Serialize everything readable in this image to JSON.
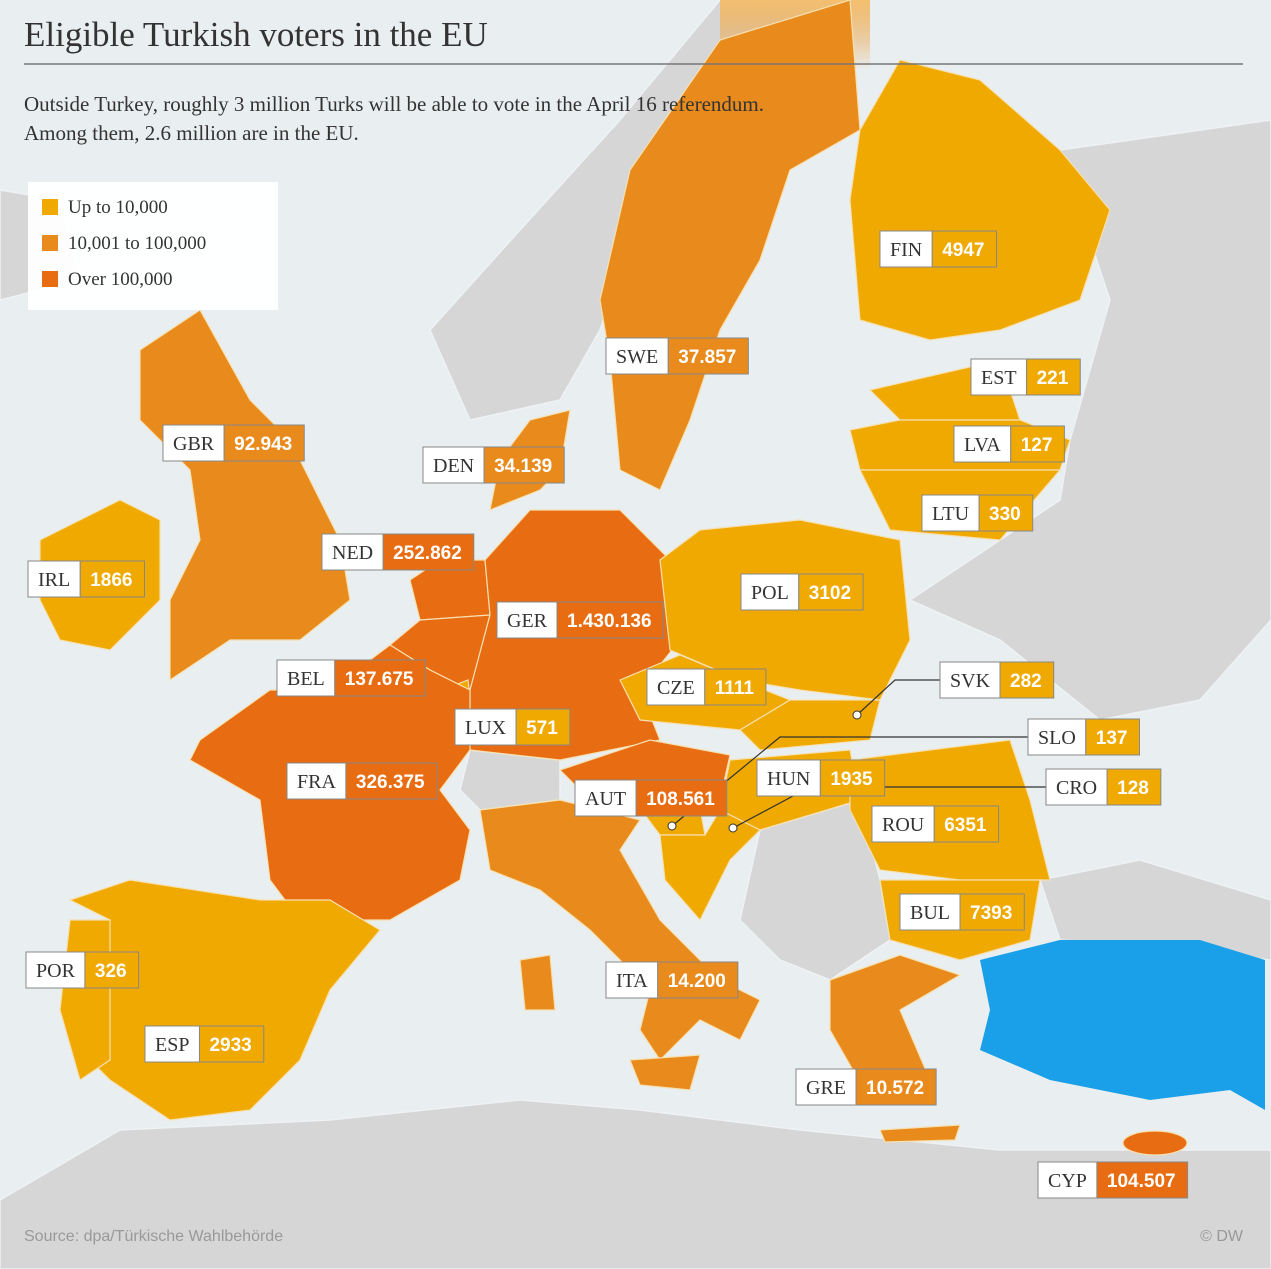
{
  "title": "Eligible Turkish voters in the EU",
  "subtitle": [
    "Outside Turkey, roughly 3 million Turks will be able to vote in the April 16 referendum.",
    "Among them, 2.6 million are in the EU."
  ],
  "legend": [
    {
      "label": "Up to 10,000",
      "color": "#efa900"
    },
    {
      "label": "10,001 to 100,000",
      "color": "#e88a1c"
    },
    {
      "label": "Over 100,000",
      "color": "#e86c12"
    }
  ],
  "countries": [
    {
      "code": "FIN",
      "value": "4947",
      "tier": 0
    },
    {
      "code": "SWE",
      "value": "37.857",
      "tier": 1
    },
    {
      "code": "EST",
      "value": "221",
      "tier": 0
    },
    {
      "code": "LVA",
      "value": "127",
      "tier": 0
    },
    {
      "code": "LTU",
      "value": "330",
      "tier": 0
    },
    {
      "code": "GBR",
      "value": "92.943",
      "tier": 1
    },
    {
      "code": "DEN",
      "value": "34.139",
      "tier": 1
    },
    {
      "code": "NED",
      "value": "252.862",
      "tier": 2
    },
    {
      "code": "IRL",
      "value": "1866",
      "tier": 0
    },
    {
      "code": "POL",
      "value": "3102",
      "tier": 0
    },
    {
      "code": "GER",
      "value": "1.430.136",
      "tier": 2
    },
    {
      "code": "CZE",
      "value": "1111",
      "tier": 0
    },
    {
      "code": "SVK",
      "value": "282",
      "tier": 0
    },
    {
      "code": "BEL",
      "value": "137.675",
      "tier": 2
    },
    {
      "code": "LUX",
      "value": "571",
      "tier": 0
    },
    {
      "code": "SLO",
      "value": "137",
      "tier": 0
    },
    {
      "code": "HUN",
      "value": "1935",
      "tier": 0
    },
    {
      "code": "CRO",
      "value": "128",
      "tier": 0
    },
    {
      "code": "FRA",
      "value": "326.375",
      "tier": 2
    },
    {
      "code": "AUT",
      "value": "108.561",
      "tier": 2
    },
    {
      "code": "ROU",
      "value": "6351",
      "tier": 0
    },
    {
      "code": "BUL",
      "value": "7393",
      "tier": 0
    },
    {
      "code": "POR",
      "value": "326",
      "tier": 0
    },
    {
      "code": "ITA",
      "value": "14.200",
      "tier": 1
    },
    {
      "code": "ESP",
      "value": "2933",
      "tier": 0
    },
    {
      "code": "GRE",
      "value": "10.572",
      "tier": 1
    },
    {
      "code": "CYP",
      "value": "104.507",
      "tier": 2
    }
  ],
  "source": "Source: dpa/Türkische Wahlbehörde",
  "credit": "© DW"
}
